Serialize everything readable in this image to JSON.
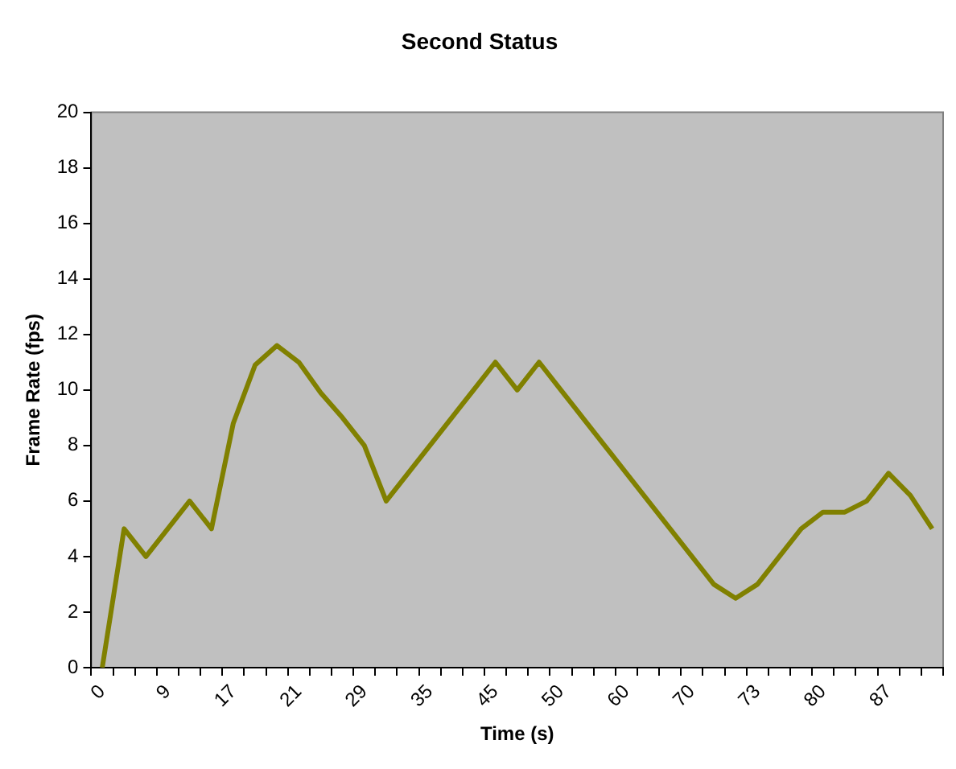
{
  "chart_data": {
    "type": "line",
    "title": "Second Status",
    "xlabel": "Time (s)",
    "ylabel": "Frame Rate (fps)",
    "categories": [
      "0",
      null,
      null,
      "9",
      null,
      null,
      "17",
      null,
      null,
      "21",
      null,
      null,
      "29",
      null,
      null,
      "35",
      null,
      null,
      "45",
      null,
      null,
      "50",
      null,
      null,
      "60",
      null,
      null,
      "70",
      null,
      null,
      "73",
      null,
      null,
      "80",
      null,
      null,
      "87",
      null,
      null
    ],
    "series": [
      {
        "color": "#808000",
        "values": [
          0,
          5,
          4,
          5,
          6,
          5,
          8.8,
          10.9,
          11.6,
          11,
          9.9,
          9,
          8,
          6,
          7,
          8,
          9,
          10,
          11,
          10,
          11,
          10,
          9,
          8,
          7,
          6,
          5,
          4,
          3,
          2.5,
          3,
          4,
          5,
          5.6,
          5.6,
          6,
          7,
          6.2,
          5
        ]
      }
    ],
    "ylim": [
      0,
      20
    ],
    "yticks": [
      0,
      2,
      4,
      6,
      8,
      10,
      12,
      14,
      16,
      18,
      20
    ],
    "grid": false,
    "legend": false,
    "marker": "none",
    "line_style": "solid"
  }
}
